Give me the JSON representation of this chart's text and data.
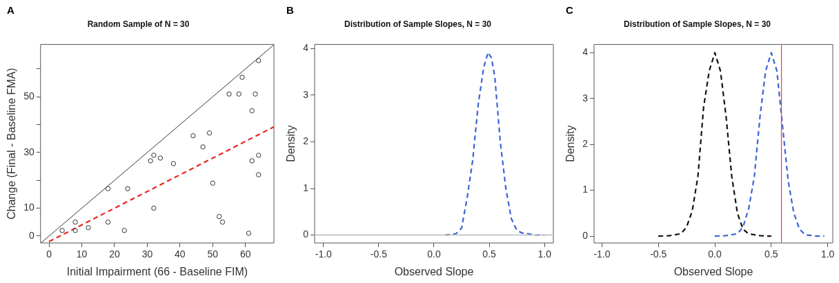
{
  "chart_data": [
    {
      "type": "scatter",
      "title": "Random Sample of N = 30",
      "xlabel": "Initial Impairment (66 - Baseline FIM)",
      "ylabel": "Change (Final - Baseline FMA)",
      "annotations": [
        "A"
      ],
      "marker": "circle",
      "grid": false,
      "xlim": [
        -2.6,
        68.7
      ],
      "ylim": [
        -2.5,
        68.8
      ],
      "xticks": [
        0,
        10,
        20,
        30,
        40,
        50,
        60
      ],
      "yticks": [
        0,
        10,
        {
          "value": 20,
          "label": null
        },
        30,
        {
          "value": 40,
          "label": null
        },
        50,
        {
          "value": 60,
          "label": null
        }
      ],
      "series": [
        {
          "color": "#333333",
          "x": [
            4,
            8,
            8,
            12,
            18,
            18,
            23,
            24,
            31,
            32,
            32,
            34,
            38,
            44,
            47,
            49,
            50,
            52,
            53,
            55,
            58,
            59,
            64,
            63,
            62,
            61,
            64,
            62,
            64
          ],
          "values": [
            2,
            5,
            2,
            3,
            17,
            5,
            2,
            17,
            27,
            29,
            10,
            28,
            26,
            36,
            32,
            37,
            19,
            7,
            5,
            51,
            51,
            57,
            63,
            51,
            45,
            1,
            29,
            27,
            22
          ]
        },
        {
          "type": "line",
          "color": "#333333",
          "marker": "none",
          "line_style": "solid",
          "x": [
            -2.5,
            68.7
          ],
          "values": [
            -2.5,
            68.7
          ]
        },
        {
          "type": "line",
          "color": "#e8241c",
          "marker": "none",
          "line_style": "dashed",
          "x": [
            0,
            68.7
          ],
          "values": [
            -2,
            39.2
          ]
        }
      ]
    },
    {
      "type": "line",
      "title": "Distribution of Sample Slopes, N = 30",
      "xlabel": "Observed Slope",
      "ylabel": "Density",
      "annotations": [
        "B"
      ],
      "marker": "none",
      "line_style": "dashed",
      "grid": false,
      "xlim": [
        -1.08,
        1.08
      ],
      "ylim": [
        -0.17,
        4.09
      ],
      "xticks": [
        {
          "value": -1,
          "label": "-1.0"
        },
        -0.5,
        {
          "value": 0,
          "label": "0.0"
        },
        0.5,
        {
          "value": 1,
          "label": "1.0"
        }
      ],
      "yticks": [
        0,
        1,
        2,
        3,
        4
      ],
      "ref_lines": [
        {
          "axis": "y",
          "value": 0,
          "color": "#bbbbbb"
        }
      ],
      "series": [
        {
          "color": "#3a62d6",
          "x": [
            0.1,
            0.15,
            0.2,
            0.25,
            0.3,
            0.35,
            0.4,
            0.45,
            0.49,
            0.52,
            0.55,
            0.6,
            0.65,
            0.7,
            0.75,
            0.8,
            0.85,
            0.9,
            1.0
          ],
          "values": [
            0,
            0.01,
            0.03,
            0.15,
            0.8,
            1.6,
            2.8,
            3.6,
            3.92,
            3.8,
            3.4,
            2.0,
            1.0,
            0.35,
            0.1,
            0.04,
            0.03,
            0,
            0
          ]
        }
      ]
    },
    {
      "type": "line",
      "title": "Distribution of Sample Slopes, N = 30",
      "xlabel": "Observed Slope",
      "ylabel": "Density",
      "annotations": [
        "C"
      ],
      "marker": "none",
      "line_style": "dashed",
      "grid": false,
      "xlim": [
        -1.07,
        1.045
      ],
      "ylim": [
        -0.15,
        4.18
      ],
      "xticks": [
        {
          "value": -1,
          "label": "-1.0"
        },
        -0.5,
        {
          "value": 0,
          "label": "0.0"
        },
        0.5,
        {
          "value": 1,
          "label": "1.0"
        }
      ],
      "yticks": [
        0,
        1,
        2,
        3,
        4
      ],
      "ref_lines": [
        {
          "axis": "x",
          "value": 0.59,
          "color": "#ff4040"
        }
      ],
      "series": [
        {
          "color": "#111111",
          "x": [
            -0.5,
            -0.4,
            -0.3,
            -0.25,
            -0.2,
            -0.15,
            -0.1,
            -0.05,
            0,
            0.05,
            0.1,
            0.15,
            0.2,
            0.25,
            0.3,
            0.4,
            0.5
          ],
          "values": [
            0,
            0.01,
            0.05,
            0.2,
            0.55,
            1.3,
            2.8,
            3.6,
            4.0,
            3.6,
            2.6,
            1.3,
            0.5,
            0.15,
            0.05,
            0.01,
            0
          ]
        },
        {
          "color": "#3a62d6",
          "x": [
            0,
            0.1,
            0.2,
            0.25,
            0.3,
            0.35,
            0.4,
            0.45,
            0.5,
            0.55,
            0.6,
            0.65,
            0.7,
            0.75,
            0.8,
            0.9,
            0.97
          ],
          "values": [
            0,
            0.01,
            0.05,
            0.2,
            0.6,
            1.3,
            2.6,
            3.6,
            4.0,
            3.6,
            2.4,
            1.2,
            0.5,
            0.15,
            0.03,
            0,
            0
          ]
        }
      ]
    }
  ]
}
